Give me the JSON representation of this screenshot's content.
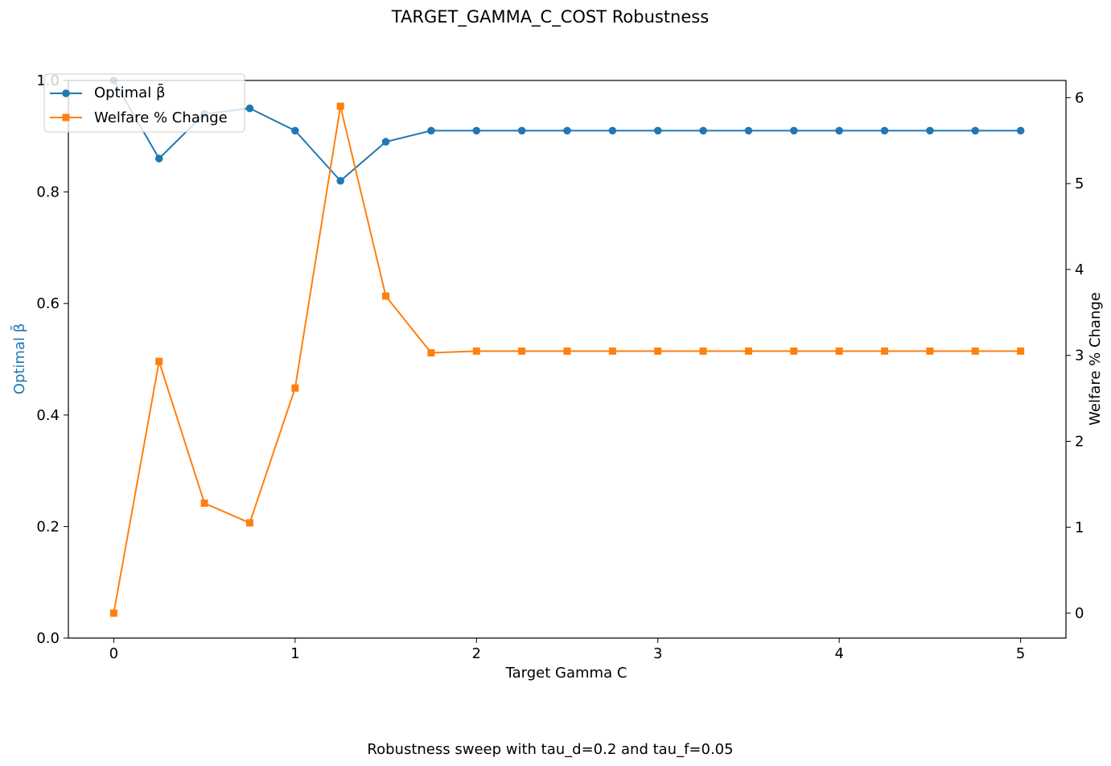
{
  "chart_data": {
    "type": "line",
    "title": "TARGET_GAMMA_C_COST Robustness",
    "caption": "Robustness sweep with tau_d=0.2 and tau_f=0.05",
    "xlabel": "Target Gamma C",
    "ylabel_left": "Optimal β̄",
    "ylabel_right": "Welfare % Change",
    "xlim": [
      -0.25,
      5.25
    ],
    "ylim_left": [
      0.0,
      1.0
    ],
    "ylim_right": [
      -0.29,
      6.2
    ],
    "x_ticks": [
      0,
      1,
      2,
      3,
      4,
      5
    ],
    "y_left_ticks": [
      0.0,
      0.2,
      0.4,
      0.6,
      0.8,
      1.0
    ],
    "y_right_ticks": [
      0,
      1,
      2,
      3,
      4,
      5,
      6
    ],
    "grid": false,
    "legend_position": "top-left",
    "x": [
      0,
      0.25,
      0.5,
      0.75,
      1.0,
      1.25,
      1.5,
      1.75,
      2.0,
      2.25,
      2.5,
      2.75,
      3.0,
      3.25,
      3.5,
      3.75,
      4.0,
      4.25,
      4.5,
      4.75,
      5.0
    ],
    "series": [
      {
        "name": "Optimal β̄",
        "axis": "left",
        "marker": "circle",
        "color": "#1f77b4",
        "values": [
          1.0,
          0.86,
          0.94,
          0.95,
          0.91,
          0.82,
          0.89,
          0.91,
          0.91,
          0.91,
          0.91,
          0.91,
          0.91,
          0.91,
          0.91,
          0.91,
          0.91,
          0.91,
          0.91,
          0.91,
          0.91
        ]
      },
      {
        "name": "Welfare % Change",
        "axis": "right",
        "marker": "square",
        "color": "#ff7f0e",
        "values": [
          0.0,
          2.93,
          1.28,
          1.05,
          2.62,
          5.9,
          3.69,
          3.03,
          3.05,
          3.05,
          3.05,
          3.05,
          3.05,
          3.05,
          3.05,
          3.05,
          3.05,
          3.05,
          3.05,
          3.05,
          3.05
        ]
      }
    ]
  }
}
